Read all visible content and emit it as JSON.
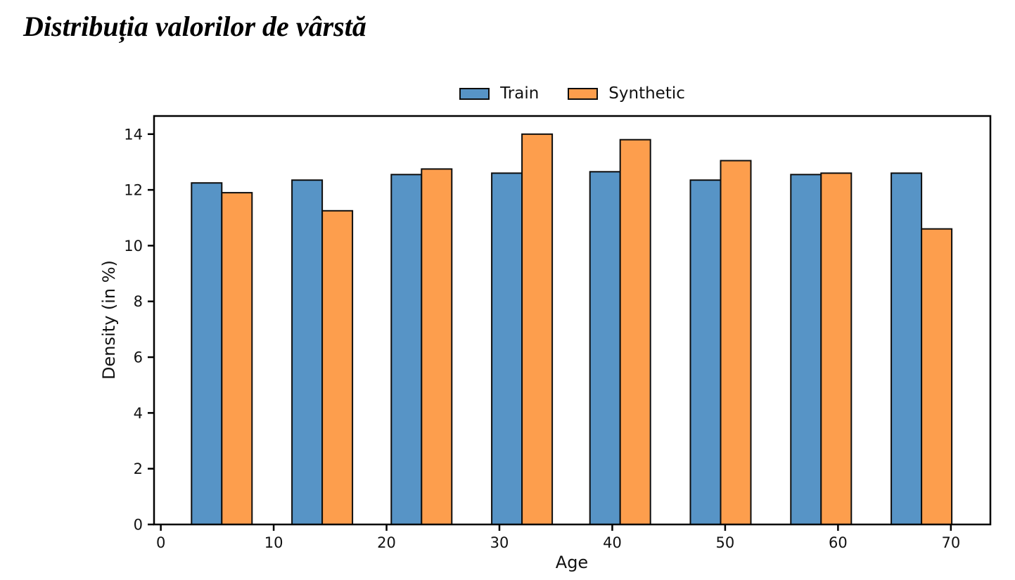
{
  "page": {
    "background": "#ffffff"
  },
  "chart_data": {
    "type": "bar",
    "title": "Distribuția valorilor de vârstă",
    "xlabel": "Age",
    "ylabel": "Density (in %)",
    "xlim": [
      -0.6,
      73.5
    ],
    "ylim": [
      0,
      14.65
    ],
    "x_ticks": [
      0,
      10,
      20,
      30,
      40,
      50,
      60,
      70
    ],
    "y_ticks": [
      0,
      2,
      4,
      6,
      8,
      10,
      12,
      14
    ],
    "grid": false,
    "legend_position": "top-center",
    "bin_centers": [
      5.4,
      14.3,
      23.1,
      32.0,
      40.7,
      49.6,
      58.5,
      67.4
    ],
    "bar_width": 2.68,
    "edge_color": "#0d0d0d",
    "spine_color": "#000000",
    "series": [
      {
        "name": "Train",
        "color": "#5794C6",
        "values": [
          12.25,
          12.35,
          12.55,
          12.6,
          12.65,
          12.35,
          12.55,
          12.6
        ]
      },
      {
        "name": "Synthetic",
        "color": "#FD9E4D",
        "values": [
          11.9,
          11.25,
          12.75,
          14.0,
          13.8,
          13.05,
          12.6,
          10.6
        ]
      }
    ]
  }
}
